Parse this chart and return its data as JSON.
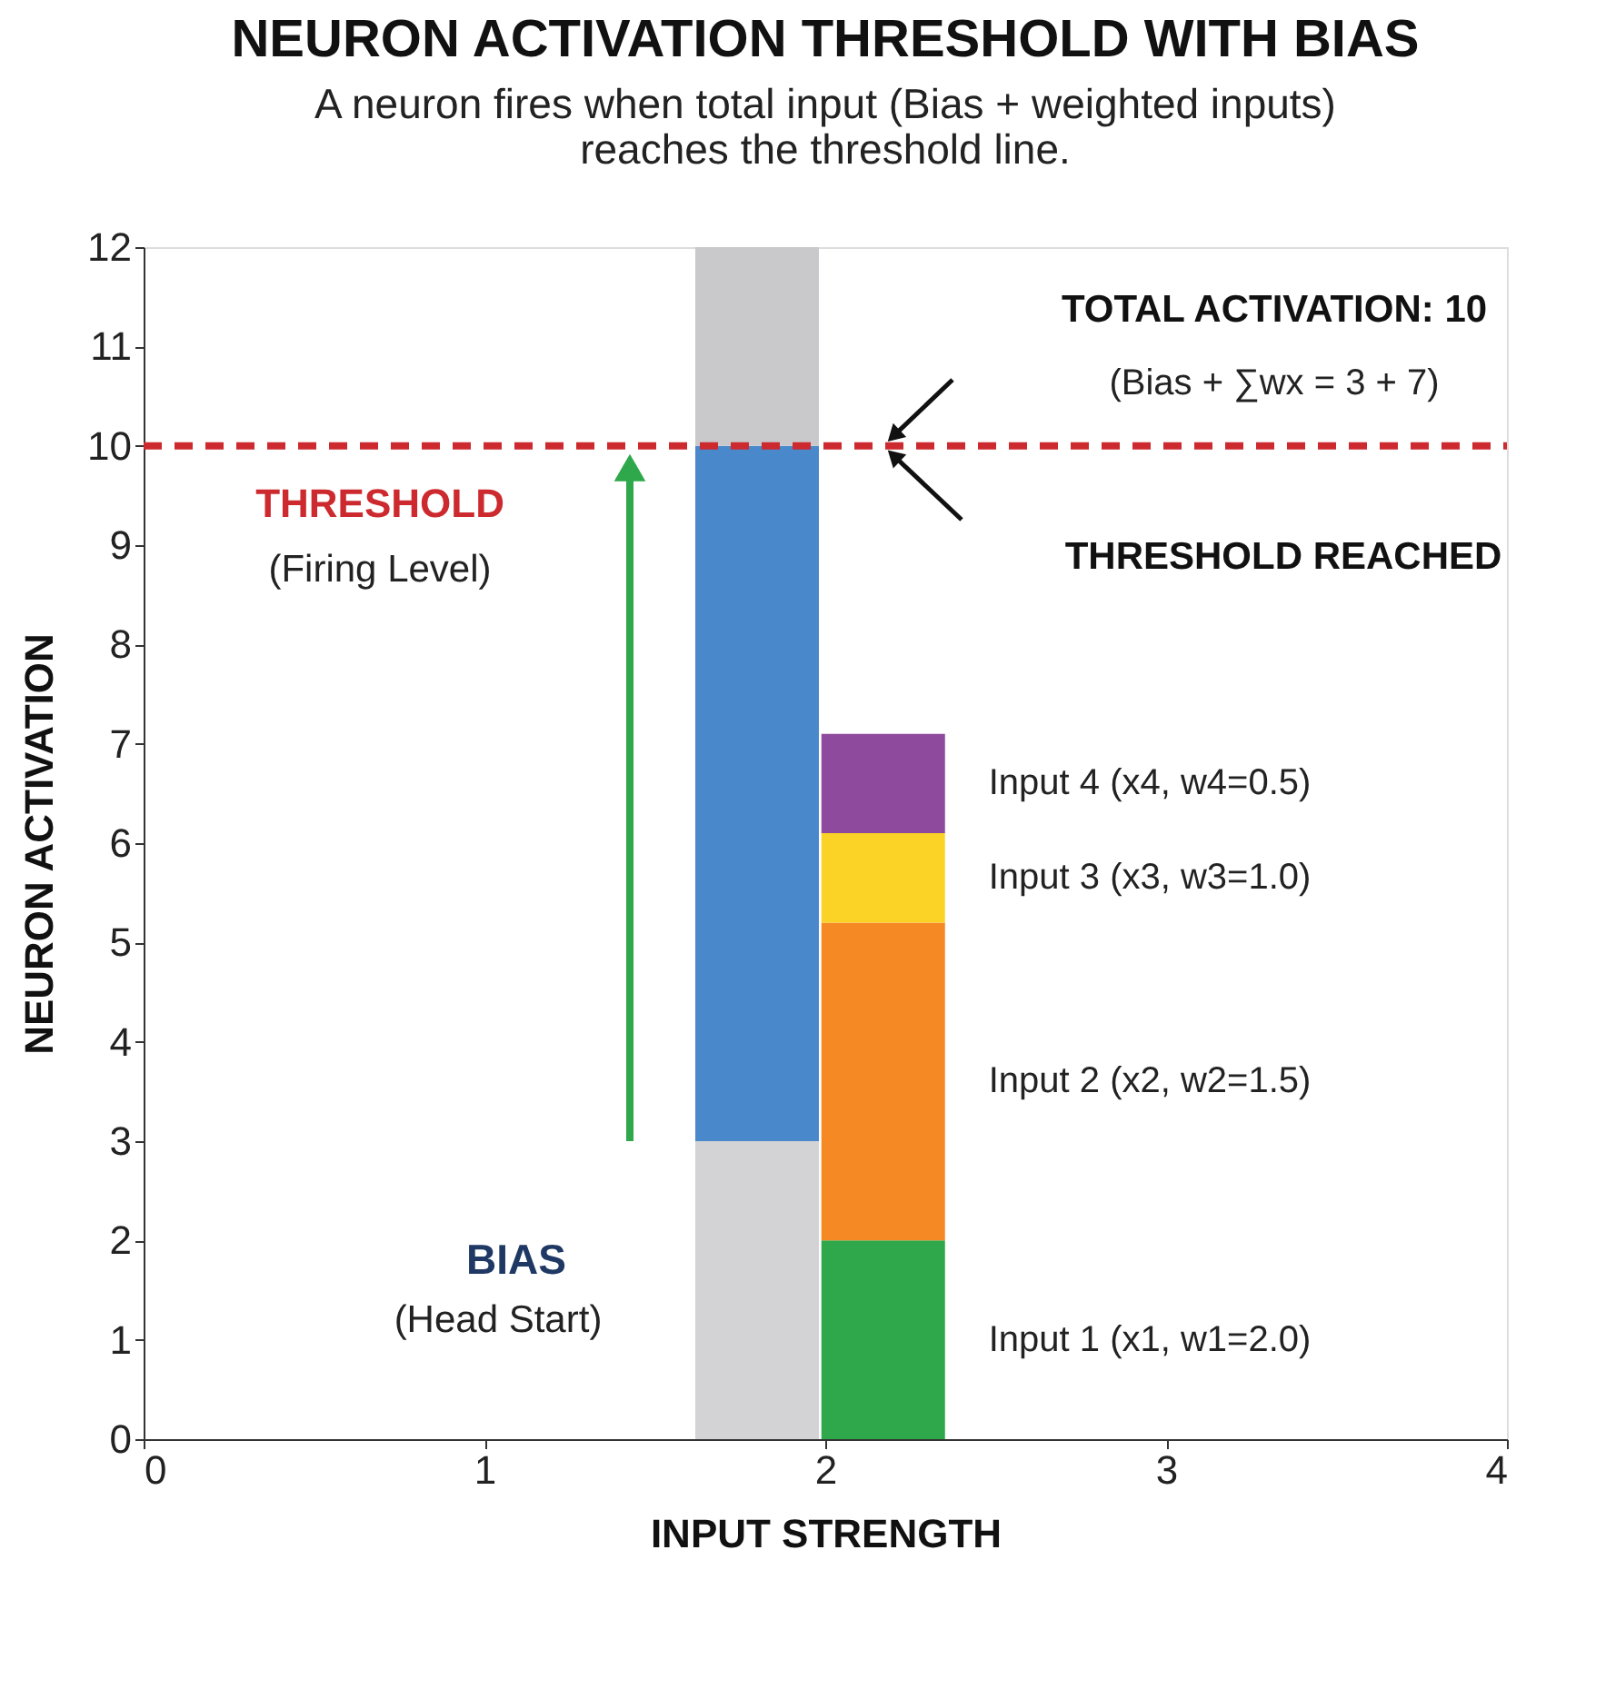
{
  "chart_data": {
    "type": "bar",
    "title": "NEURON ACTIVATION THRESHOLD WITH BIAS",
    "subtitle": "A neuron fires when total input (Bias + weighted inputs) reaches the threshold line.",
    "xlabel": "INPUT STRENGTH",
    "ylabel": "NEURON ACTIVATION",
    "xlim": [
      0,
      4
    ],
    "xticks": [
      0,
      1,
      2,
      3,
      4
    ],
    "ylim": [
      0,
      12
    ],
    "yticks": [
      0,
      1,
      2,
      3,
      4,
      5,
      6,
      7,
      8,
      9,
      10,
      11,
      12
    ],
    "grid": false,
    "stacked": true,
    "x": [
      1.8,
      2.17
    ],
    "series": [
      {
        "values": [
          3,
          null
        ],
        "color": "#d3d3d5"
      },
      {
        "values": [
          7,
          null
        ],
        "color": "#4a88cc"
      },
      {
        "values": [
          2,
          null
        ],
        "color": "#c9c9cb"
      },
      {
        "name": "Input 1 (x1, w1=2.0)",
        "values": [
          null,
          2
        ],
        "color": "#2ea84a"
      },
      {
        "name": "Input 2 (x2, w2=1.5)",
        "values": [
          null,
          3.2
        ],
        "color": "#f58a25"
      },
      {
        "name": "Input 3 (x3, w3=1.0)",
        "values": [
          null,
          0.9
        ],
        "color": "#fbd327"
      },
      {
        "name": "Input 4 (x4, w4=0.5)",
        "values": [
          null,
          1.0
        ],
        "color": "#8e4a9c"
      }
    ],
    "ref_lines": [
      {
        "axis": "y",
        "value": 10,
        "label": "THRESHOLD",
        "color": "#cc2a2f",
        "line_style": "dashed"
      }
    ],
    "annotations": [
      "TOTAL ACTIVATION: 10",
      "(Bias + ∑wx = 3 + 7)",
      "THRESHOLD REACHED",
      "BIAS",
      "(Head Start)",
      "(Firing Level)"
    ]
  }
}
